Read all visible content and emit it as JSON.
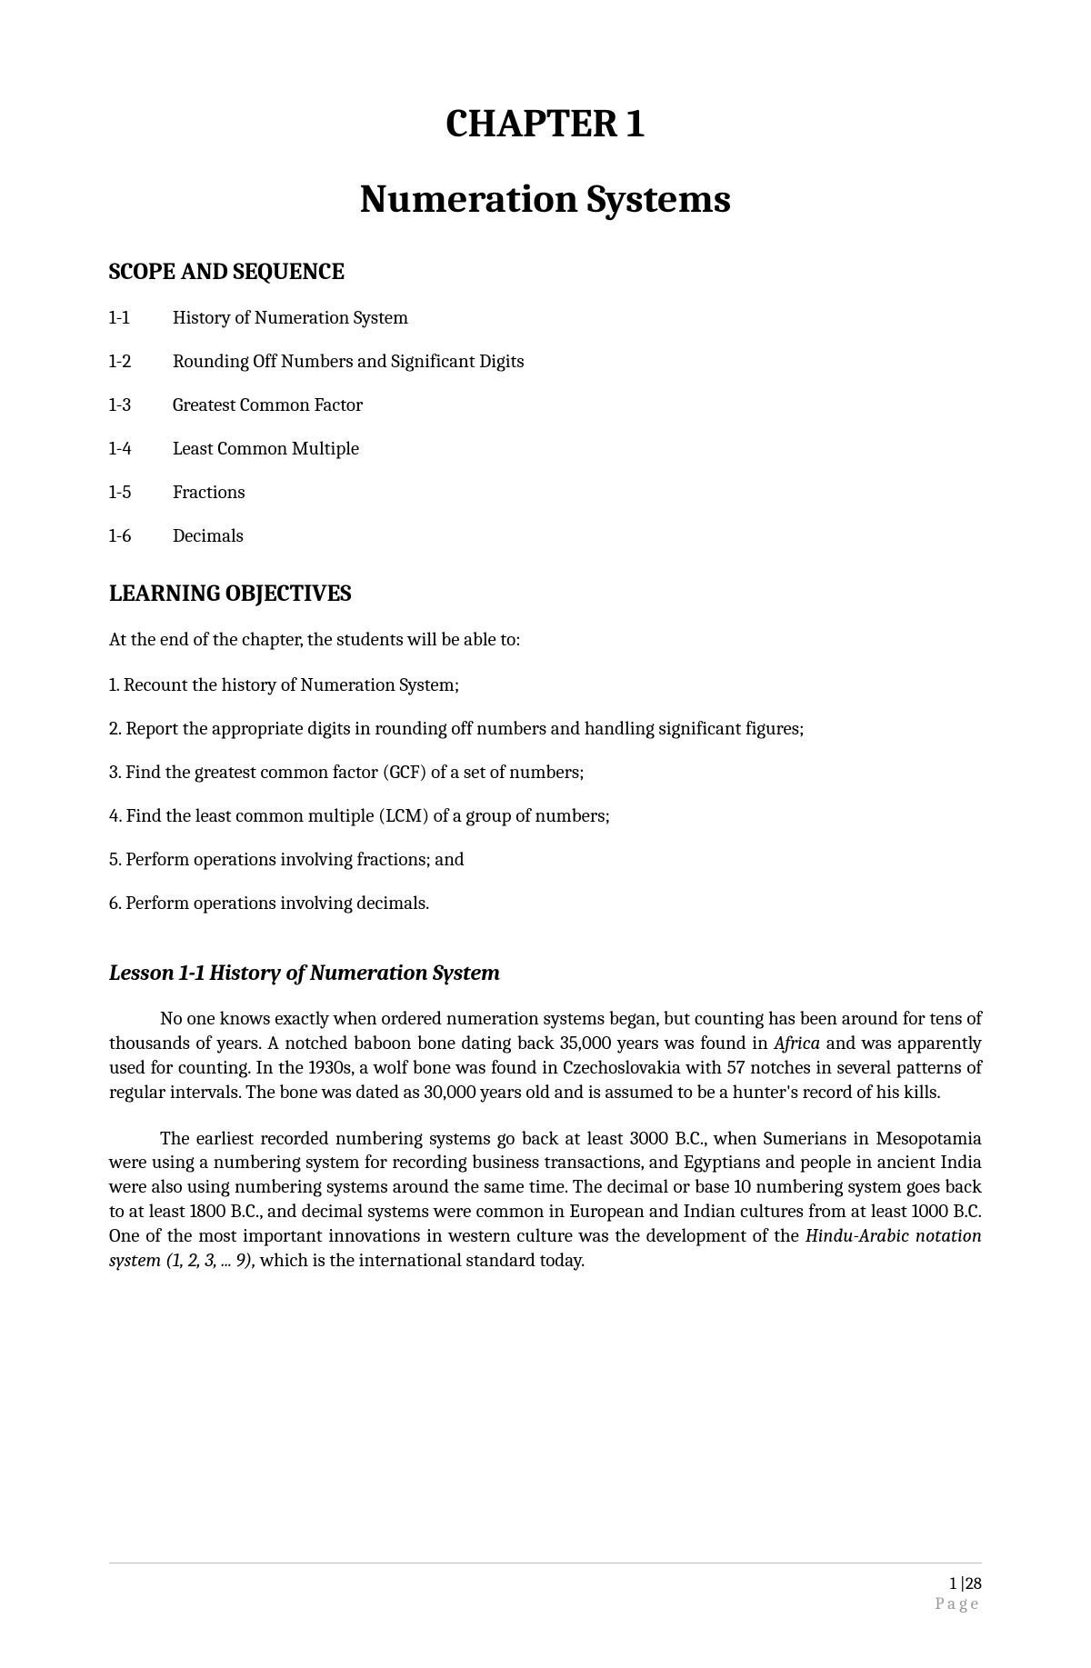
{
  "chapter": {
    "label": "CHAPTER 1",
    "title": "Numeration Systems"
  },
  "scope": {
    "heading": "SCOPE AND SEQUENCE",
    "items": [
      {
        "num": "1-1",
        "label": "History of Numeration System"
      },
      {
        "num": "1-2",
        "label": "Rounding Off Numbers and Significant Digits"
      },
      {
        "num": "1-3",
        "label": "Greatest Common Factor"
      },
      {
        "num": "1-4",
        "label": "Least Common Multiple"
      },
      {
        "num": "1-5",
        "label": "Fractions"
      },
      {
        "num": "1-6",
        "label": "Decimals"
      }
    ]
  },
  "objectives": {
    "heading": "LEARNING OBJECTIVES",
    "intro": "At the end of the chapter, the students will be able to:",
    "items": [
      "1. Recount the history of Numeration System;",
      "2. Report the appropriate digits in rounding off numbers and handling significant figures;",
      "3. Find the greatest common factor (GCF) of a set of numbers;",
      "4. Find the least common multiple (LCM) of a group of numbers;",
      "5. Perform operations involving fractions; and",
      "6. Perform operations involving decimals."
    ]
  },
  "lesson": {
    "heading": "Lesson 1-1 History of Numeration System",
    "para1_a": "No one knows exactly when ordered numeration systems began, but counting has been around for tens of thousands of years. A notched baboon bone dating back 35,000 years was found in ",
    "para1_italic1": "Africa",
    "para1_b": " and was apparently used for counting. In the 1930s, a wolf bone was found in Czechoslovakia with 57 notches in several patterns of regular intervals. The bone was dated as 30,000 years old and is assumed to be a hunter's record of his kills.",
    "para2_a": "The earliest recorded numbering systems go back at least 3000 B.C., when Sumerians in Mesopotamia were using a numbering system for recording business transactions, and Egyptians and people in ancient India were also using numbering systems around the same time. The decimal or base 10 numbering system goes back to at least 1800 B.C., and decimal systems were common in European and Indian cultures from at least 1000 B.C. One of the most important innovations in western culture was the development of the ",
    "para2_italic1": "Hindu-Arabic notation system (1, 2, 3, ... 9),",
    "para2_b": " which is the international standard today."
  },
  "footer": {
    "page_current": "1",
    "page_sep": " |",
    "page_total": "28",
    "label": "Page"
  }
}
